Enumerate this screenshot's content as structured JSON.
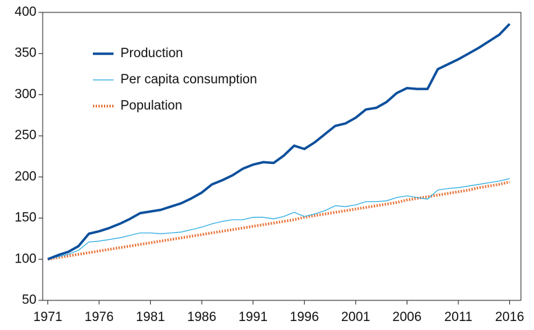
{
  "chart_data": {
    "type": "line",
    "x": [
      1971,
      1972,
      1973,
      1974,
      1975,
      1976,
      1977,
      1978,
      1979,
      1980,
      1981,
      1982,
      1983,
      1984,
      1985,
      1986,
      1987,
      1988,
      1989,
      1990,
      1991,
      1992,
      1993,
      1994,
      1995,
      1996,
      1997,
      1998,
      1999,
      2000,
      2001,
      2002,
      2003,
      2004,
      2005,
      2006,
      2007,
      2008,
      2009,
      2010,
      2011,
      2012,
      2013,
      2014,
      2015,
      2016
    ],
    "series": [
      {
        "name": "Production",
        "color": "#0b4f9c",
        "style": "solid",
        "width": 3.5,
        "values": [
          100,
          105,
          109,
          116,
          131,
          134,
          138,
          143,
          149,
          156,
          158,
          160,
          164,
          168,
          174,
          181,
          191,
          196,
          202,
          210,
          215,
          218,
          217,
          226,
          238,
          234,
          242,
          252,
          262,
          265,
          272,
          282,
          284,
          291,
          302,
          308,
          307,
          307,
          331,
          337,
          343,
          350,
          357,
          365,
          373,
          386
        ]
      },
      {
        "name": "Per capita consumption",
        "color": "#29abe2",
        "style": "solid",
        "width": 1.2,
        "values": [
          100,
          103,
          106,
          111,
          121,
          122,
          124,
          126,
          129,
          132,
          132,
          131,
          132,
          133,
          136,
          139,
          143,
          146,
          148,
          148,
          151,
          151,
          149,
          152,
          157,
          152,
          155,
          159,
          165,
          164,
          166,
          170,
          170,
          171,
          175,
          177,
          175,
          173,
          184,
          186,
          187,
          189,
          191,
          193,
          195,
          198
        ]
      },
      {
        "name": "Population",
        "color": "#e8743b",
        "style": "dotted",
        "width": 4,
        "values": [
          100,
          102,
          104,
          106,
          108,
          110,
          112,
          114,
          116,
          118,
          120,
          122,
          124,
          126,
          128,
          130,
          132,
          134,
          136,
          138,
          140,
          142,
          144,
          146,
          148,
          151,
          153,
          155,
          157,
          159,
          161,
          163,
          165,
          167,
          169,
          172,
          174,
          176,
          178,
          180,
          182,
          184,
          187,
          189,
          191,
          194
        ]
      }
    ],
    "xlim": [
      1970.5,
      2017.1
    ],
    "xticks": [
      1971,
      1976,
      1981,
      1986,
      1991,
      1996,
      2001,
      2006,
      2011,
      2016
    ],
    "ylim": [
      50,
      400
    ],
    "yticks": [
      50,
      100,
      150,
      200,
      250,
      300,
      350,
      400
    ],
    "legend": "upper left"
  }
}
